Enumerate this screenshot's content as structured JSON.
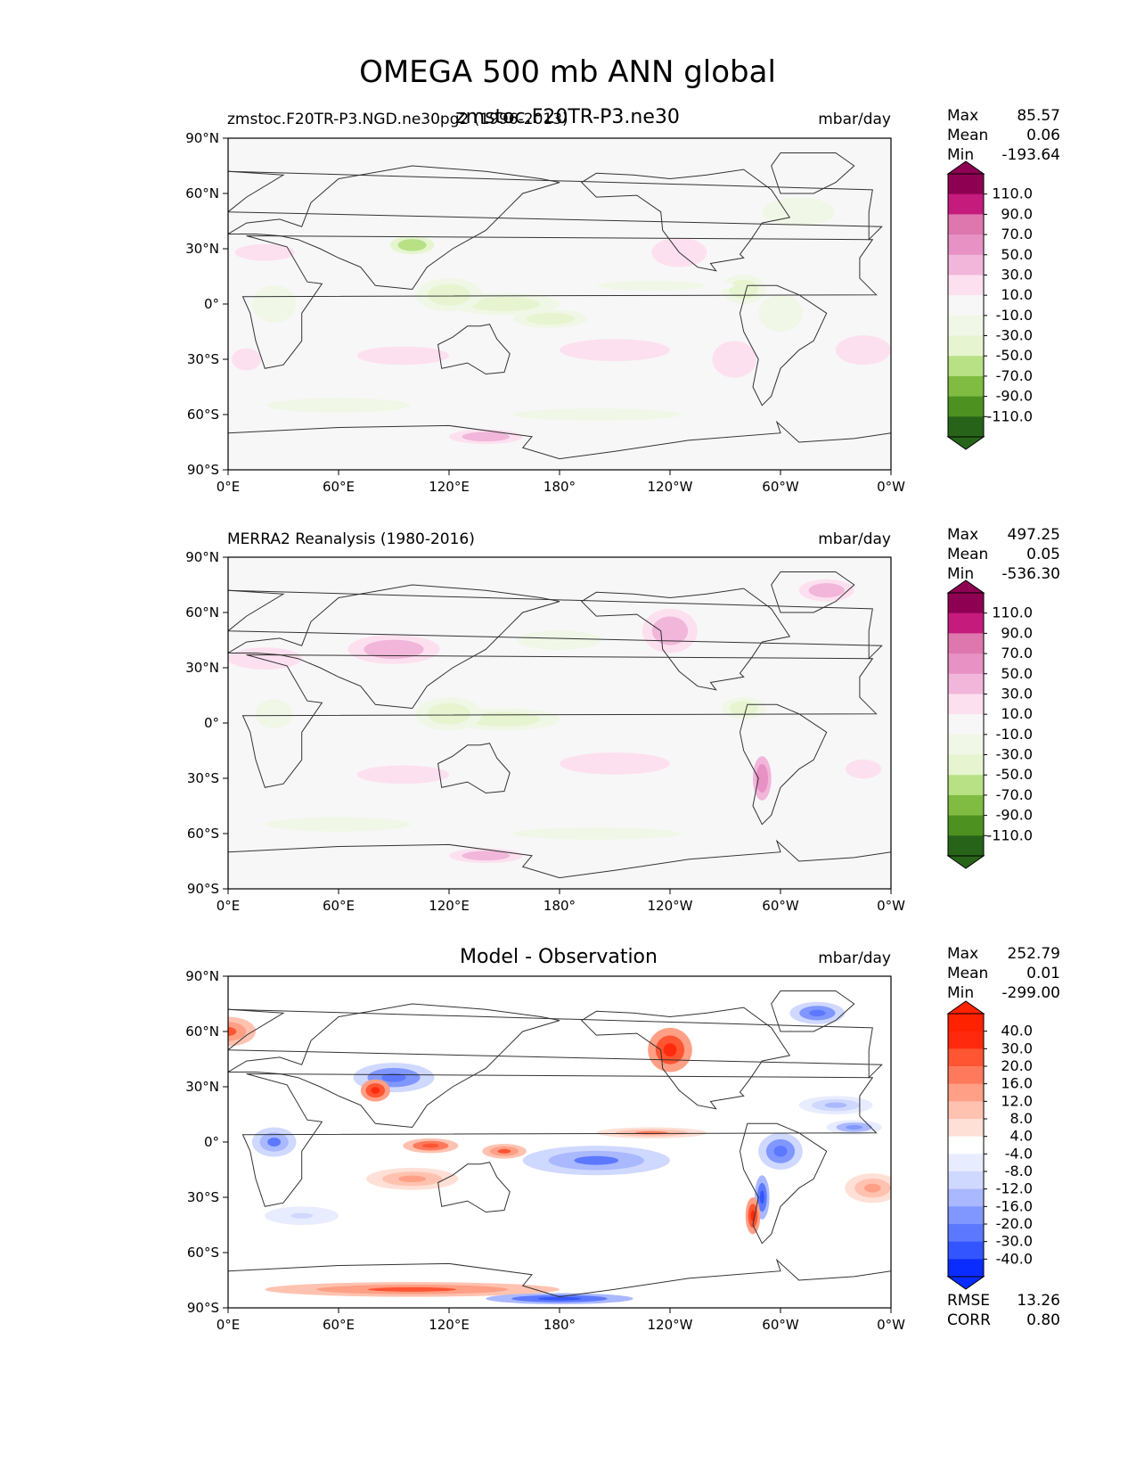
{
  "figure": {
    "title": "OMEGA 500 mb ANN global",
    "overlap_title": "zmstoc.F20TR-P3.ne30"
  },
  "colors": {
    "pos": [
      "#fde0ef",
      "#f1b6da",
      "#e891c4",
      "#de77ae",
      "#c51b7d",
      "#8e0152"
    ],
    "neg": [
      "#f0f7e6",
      "#e6f5d0",
      "#b8e186",
      "#7fbc41",
      "#4d9221",
      "#276419"
    ],
    "diff_pos": [
      "#ffffff",
      "#ffe0d6",
      "#ffc2b0",
      "#ff9f85",
      "#ff7a5c",
      "#ff5533",
      "#ff2a0d",
      "#ff2200"
    ],
    "diff_neg": [
      "#ffffff",
      "#e8ecff",
      "#cfd8ff",
      "#a9b8ff",
      "#8097ff",
      "#5c78ff",
      "#3355ff",
      "#0a2cff"
    ],
    "land": "#333333",
    "bg_map": "#f7f7f7"
  },
  "chart_data": [
    {
      "type": "heatmap",
      "title": "zmstoc.F20TR-P3.NGD.ne30pg2 (1996-2013)",
      "units": "mbar/day",
      "stats": {
        "max_label": "Max",
        "max": "85.57",
        "mean_label": "Mean",
        "mean": "0.06",
        "min_label": "Min",
        "min": "-193.64"
      },
      "colorbar_ticks": [
        "110.0",
        "90.0",
        "70.0",
        "50.0",
        "30.0",
        "10.0",
        "-10.0",
        "-30.0",
        "-50.0",
        "-70.0",
        "-90.0",
        "-110.0"
      ],
      "xticks": [
        "0°E",
        "60°E",
        "120°E",
        "180°",
        "120°W",
        "60°W",
        "0°W"
      ],
      "yticks": [
        "90°N",
        "60°N",
        "30°N",
        "0°",
        "30°S",
        "60°S",
        "90°S"
      ],
      "xlim": [
        0,
        360
      ],
      "ylim": [
        -90,
        90
      ],
      "regions": [
        {
          "lon": 150,
          "lat": 0,
          "rx": 30,
          "ry": 6,
          "v": -55
        },
        {
          "lon": 175,
          "lat": -8,
          "rx": 20,
          "ry": 5,
          "v": -40
        },
        {
          "lon": 120,
          "lat": 5,
          "rx": 18,
          "ry": 9,
          "v": -45
        },
        {
          "lon": 100,
          "lat": 32,
          "rx": 12,
          "ry": 5,
          "v": -70
        },
        {
          "lon": 280,
          "lat": 8,
          "rx": 12,
          "ry": 8,
          "v": -60
        },
        {
          "lon": 300,
          "lat": -5,
          "rx": 12,
          "ry": 10,
          "v": -35
        },
        {
          "lon": 25,
          "lat": 0,
          "rx": 12,
          "ry": 10,
          "v": -30
        },
        {
          "lon": 60,
          "lat": -55,
          "rx": 60,
          "ry": 6,
          "v": -20
        },
        {
          "lon": 200,
          "lat": -60,
          "rx": 70,
          "ry": 5,
          "v": -15
        },
        {
          "lon": 310,
          "lat": 50,
          "rx": 30,
          "ry": 12,
          "v": -20
        },
        {
          "lon": 355,
          "lat": -60,
          "rx": 20,
          "ry": 6,
          "v": -10
        },
        {
          "lon": 230,
          "lat": 10,
          "rx": 45,
          "ry": 4,
          "v": -18
        },
        {
          "lon": 95,
          "lat": -28,
          "rx": 25,
          "ry": 5,
          "v": 35
        },
        {
          "lon": 210,
          "lat": -25,
          "rx": 30,
          "ry": 6,
          "v": 30
        },
        {
          "lon": 20,
          "lat": 28,
          "rx": 25,
          "ry": 7,
          "v": 20
        },
        {
          "lon": 140,
          "lat": -72,
          "rx": 20,
          "ry": 4,
          "v": 40
        },
        {
          "lon": 10,
          "lat": -30,
          "rx": 8,
          "ry": 6,
          "v": 30
        },
        {
          "lon": 345,
          "lat": -25,
          "rx": 15,
          "ry": 8,
          "v": 25
        },
        {
          "lon": 245,
          "lat": 28,
          "rx": 15,
          "ry": 8,
          "v": 30
        },
        {
          "lon": 275,
          "lat": -30,
          "rx": 12,
          "ry": 10,
          "v": 35
        }
      ]
    },
    {
      "type": "heatmap",
      "title": "MERRA2 Reanalysis (1980-2016)",
      "units": "mbar/day",
      "stats": {
        "max_label": "Max",
        "max": "497.25",
        "mean_label": "Mean",
        "mean": "0.05",
        "min_label": "Min",
        "min": "-536.30"
      },
      "colorbar_ticks": [
        "110.0",
        "90.0",
        "70.0",
        "50.0",
        "30.0",
        "10.0",
        "-10.0",
        "-30.0",
        "-50.0",
        "-70.0",
        "-90.0",
        "-110.0"
      ],
      "xticks": [
        "0°E",
        "60°E",
        "120°E",
        "180°",
        "120°W",
        "60°W",
        "0°W"
      ],
      "yticks": [
        "90°N",
        "60°N",
        "30°N",
        "0°",
        "30°S",
        "60°S",
        "90°S"
      ],
      "xlim": [
        0,
        360
      ],
      "ylim": [
        -90,
        90
      ],
      "regions": [
        {
          "lon": 150,
          "lat": 2,
          "rx": 30,
          "ry": 6,
          "v": -50
        },
        {
          "lon": 120,
          "lat": 5,
          "rx": 18,
          "ry": 9,
          "v": -55
        },
        {
          "lon": 280,
          "lat": 8,
          "rx": 12,
          "ry": 6,
          "v": -45
        },
        {
          "lon": 25,
          "lat": 5,
          "rx": 10,
          "ry": 8,
          "v": -30
        },
        {
          "lon": 60,
          "lat": -55,
          "rx": 60,
          "ry": 6,
          "v": -20
        },
        {
          "lon": 200,
          "lat": -60,
          "rx": 70,
          "ry": 5,
          "v": -15
        },
        {
          "lon": 180,
          "lat": 45,
          "rx": 35,
          "ry": 8,
          "v": -18
        },
        {
          "lon": 90,
          "lat": 40,
          "rx": 25,
          "ry": 8,
          "v": 60
        },
        {
          "lon": 240,
          "lat": 50,
          "rx": 15,
          "ry": 12,
          "v": 55
        },
        {
          "lon": 290,
          "lat": -30,
          "rx": 5,
          "ry": 12,
          "v": 80
        },
        {
          "lon": 20,
          "lat": 35,
          "rx": 20,
          "ry": 6,
          "v": 30
        },
        {
          "lon": 95,
          "lat": -28,
          "rx": 25,
          "ry": 5,
          "v": 28
        },
        {
          "lon": 210,
          "lat": -22,
          "rx": 30,
          "ry": 6,
          "v": 25
        },
        {
          "lon": 140,
          "lat": -72,
          "rx": 20,
          "ry": 4,
          "v": 45
        },
        {
          "lon": 325,
          "lat": 72,
          "rx": 15,
          "ry": 6,
          "v": 50
        },
        {
          "lon": 345,
          "lat": -25,
          "rx": 15,
          "ry": 8,
          "v": 22
        }
      ]
    },
    {
      "type": "heatmap",
      "title": "Model - Observation",
      "units": "mbar/day",
      "stats": {
        "max_label": "Max",
        "max": "252.79",
        "mean_label": "Mean",
        "mean": "0.01",
        "min_label": "Min",
        "min": "-299.00"
      },
      "extra_stats": {
        "rmse_label": "RMSE",
        "rmse": "13.26",
        "corr_label": "CORR",
        "corr": "0.80"
      },
      "colorbar_ticks": [
        "40.0",
        "30.0",
        "20.0",
        "16.0",
        "12.0",
        "8.0",
        "4.0",
        "-4.0",
        "-8.0",
        "-12.0",
        "-16.0",
        "-20.0",
        "-30.0",
        "-40.0"
      ],
      "xticks": [
        "0°E",
        "60°E",
        "120°E",
        "180°",
        "120°W",
        "60°W",
        "0°W"
      ],
      "yticks": [
        "90°N",
        "60°N",
        "30°N",
        "0°",
        "30°S",
        "60°S",
        "90°S"
      ],
      "xlim": [
        0,
        360
      ],
      "ylim": [
        -90,
        90
      ],
      "regions": [
        {
          "lon": 90,
          "lat": 35,
          "rx": 22,
          "ry": 8,
          "v": -25
        },
        {
          "lon": 80,
          "lat": 28,
          "rx": 8,
          "ry": 6,
          "v": 30
        },
        {
          "lon": 200,
          "lat": -10,
          "rx": 40,
          "ry": 8,
          "v": -20
        },
        {
          "lon": 300,
          "lat": -5,
          "rx": 12,
          "ry": 10,
          "v": -25
        },
        {
          "lon": 25,
          "lat": 0,
          "rx": 12,
          "ry": 8,
          "v": -20
        },
        {
          "lon": 110,
          "lat": -2,
          "rx": 15,
          "ry": 4,
          "v": 25
        },
        {
          "lon": 150,
          "lat": -5,
          "rx": 12,
          "ry": 4,
          "v": 20
        },
        {
          "lon": 240,
          "lat": 50,
          "rx": 12,
          "ry": 12,
          "v": 30
        },
        {
          "lon": 100,
          "lat": -20,
          "rx": 25,
          "ry": 6,
          "v": 12
        },
        {
          "lon": 230,
          "lat": 5,
          "rx": 30,
          "ry": 3,
          "v": 14
        },
        {
          "lon": 340,
          "lat": 8,
          "rx": 15,
          "ry": 4,
          "v": -16
        },
        {
          "lon": 0,
          "lat": 60,
          "rx": 15,
          "ry": 8,
          "v": 18
        },
        {
          "lon": 100,
          "lat": -80,
          "rx": 80,
          "ry": 4,
          "v": 20
        },
        {
          "lon": 290,
          "lat": -30,
          "rx": 4,
          "ry": 12,
          "v": -30
        },
        {
          "lon": 285,
          "lat": -40,
          "rx": 4,
          "ry": 10,
          "v": 30
        },
        {
          "lon": 350,
          "lat": -25,
          "rx": 15,
          "ry": 8,
          "v": 12
        },
        {
          "lon": 40,
          "lat": -40,
          "rx": 20,
          "ry": 5,
          "v": -10
        },
        {
          "lon": 320,
          "lat": 70,
          "rx": 15,
          "ry": 6,
          "v": -25
        },
        {
          "lon": 330,
          "lat": 20,
          "rx": 20,
          "ry": 5,
          "v": -12
        },
        {
          "lon": 180,
          "lat": -85,
          "rx": 40,
          "ry": 3,
          "v": -30
        }
      ]
    }
  ]
}
